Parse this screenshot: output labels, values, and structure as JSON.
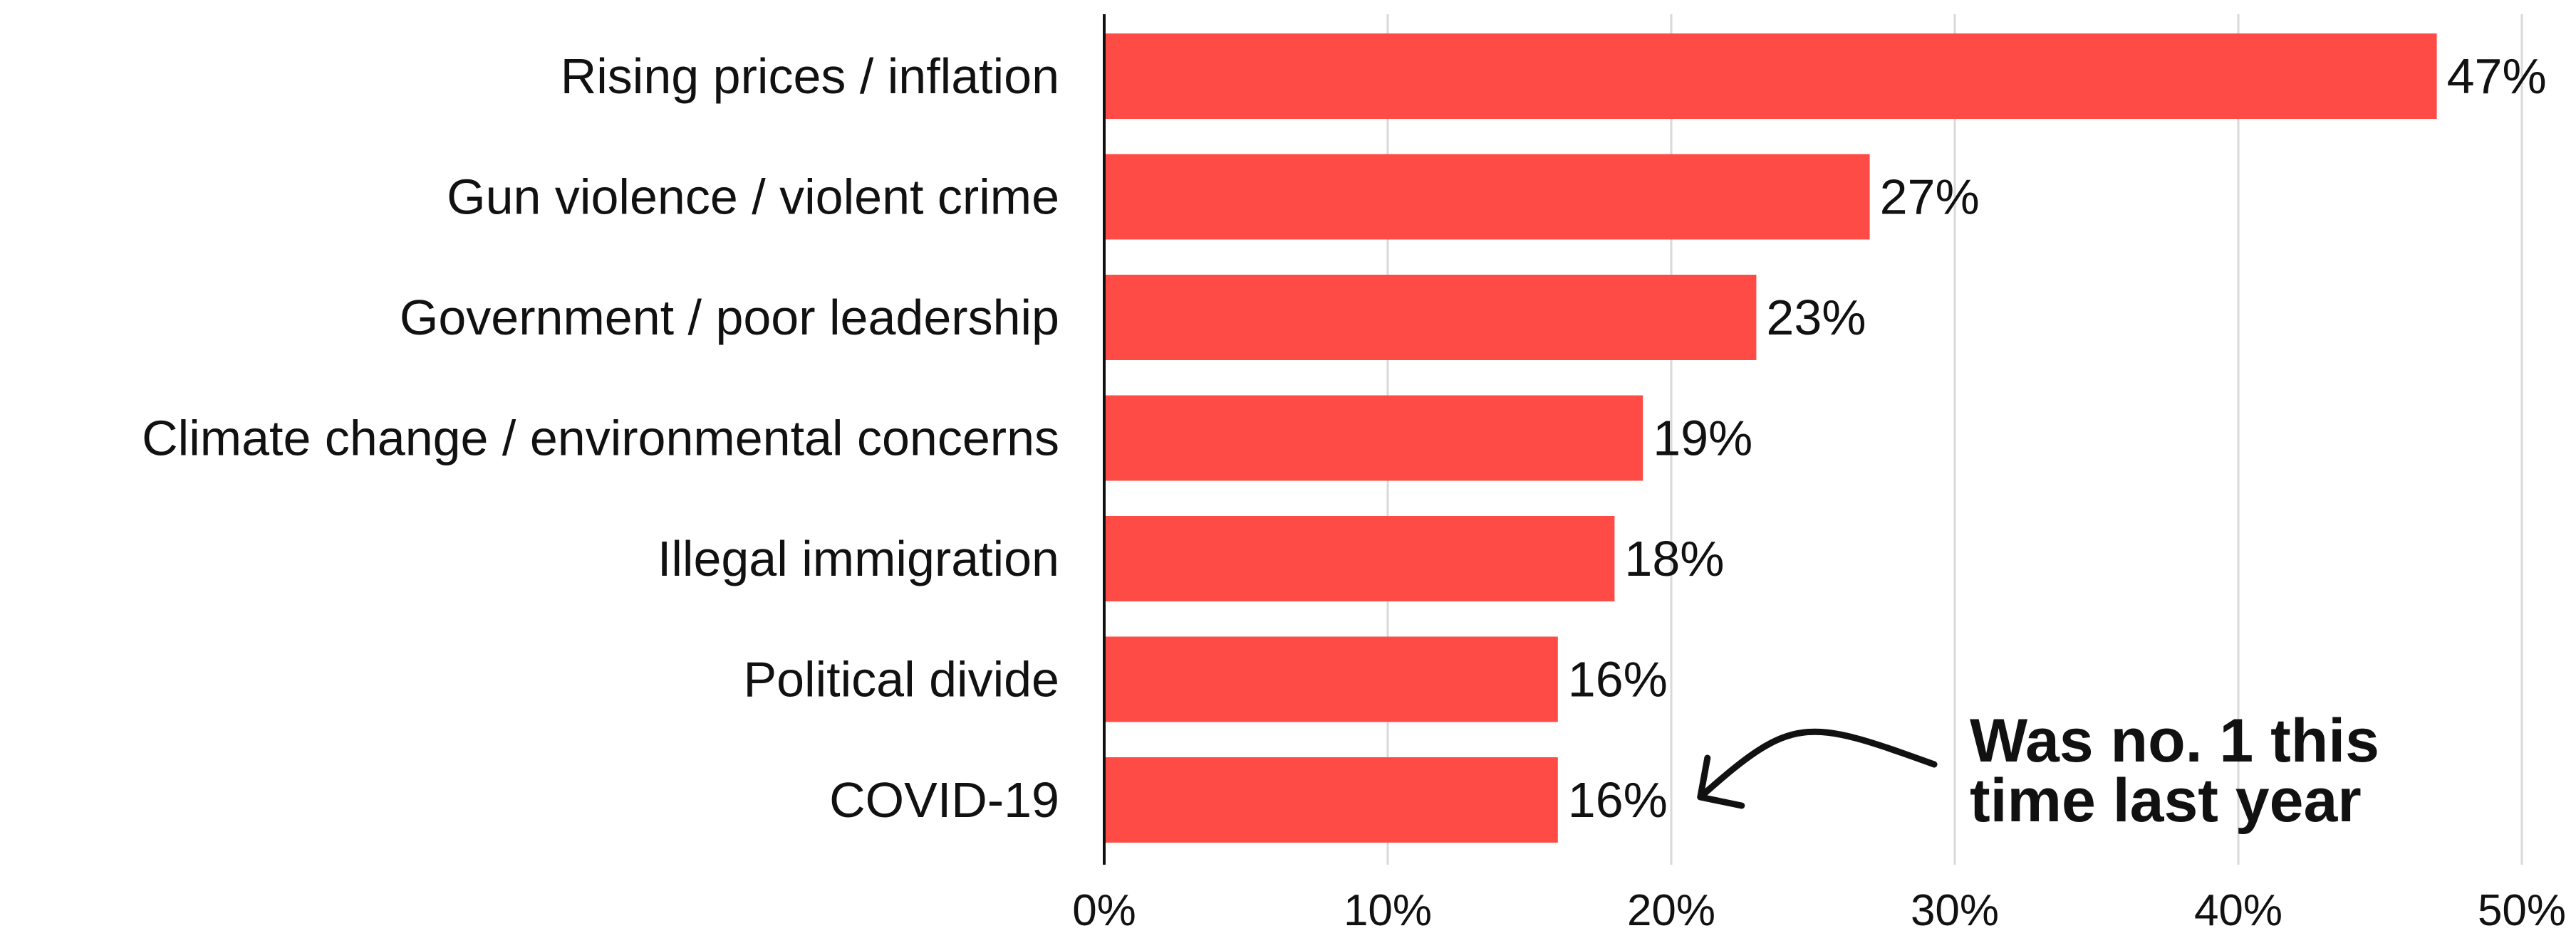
{
  "chart_data": {
    "type": "bar",
    "orientation": "horizontal",
    "categories": [
      "Rising prices / inflation",
      "Gun violence / violent crime",
      "Government / poor leadership",
      "Climate change / environmental concerns",
      "Illegal immigration",
      "Political divide",
      "COVID-19"
    ],
    "values": [
      47,
      27,
      23,
      19,
      18,
      16,
      16
    ],
    "value_labels": [
      "47%",
      "27%",
      "23%",
      "19%",
      "18%",
      "16%",
      "16%"
    ],
    "xlim": [
      0,
      50
    ],
    "x_ticks": [
      0,
      10,
      20,
      30,
      40,
      50
    ],
    "x_tick_labels": [
      "0%",
      "10%",
      "20%",
      "30%",
      "40%",
      "50%"
    ],
    "grid": "vertical",
    "bar_color": "#ff4b45",
    "annotation": {
      "lines": [
        "Was no. 1 this",
        "time last year"
      ],
      "points_to": "COVID-19"
    }
  }
}
